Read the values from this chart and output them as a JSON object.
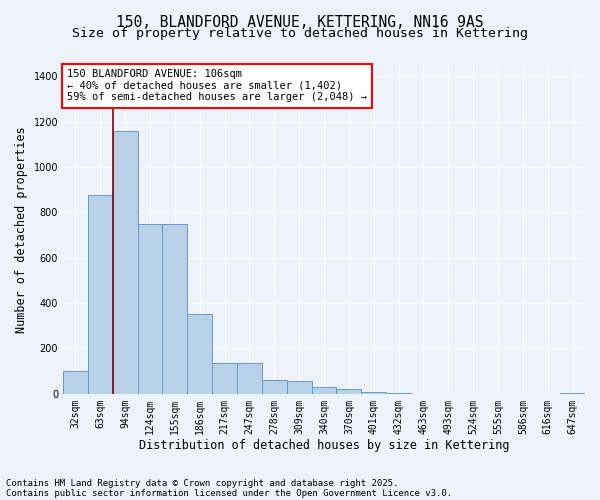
{
  "title_line1": "150, BLANDFORD AVENUE, KETTERING, NN16 9AS",
  "title_line2": "Size of property relative to detached houses in Kettering",
  "xlabel": "Distribution of detached houses by size in Kettering",
  "ylabel": "Number of detached properties",
  "categories": [
    "32sqm",
    "63sqm",
    "94sqm",
    "124sqm",
    "155sqm",
    "186sqm",
    "217sqm",
    "247sqm",
    "278sqm",
    "309sqm",
    "340sqm",
    "370sqm",
    "401sqm",
    "432sqm",
    "463sqm",
    "493sqm",
    "524sqm",
    "555sqm",
    "586sqm",
    "616sqm",
    "647sqm"
  ],
  "values": [
    100,
    875,
    1160,
    750,
    750,
    350,
    135,
    135,
    60,
    55,
    30,
    20,
    10,
    5,
    0,
    0,
    0,
    0,
    0,
    0,
    5
  ],
  "bar_color": "#b8d0e8",
  "bar_edge_color": "#6699cc",
  "background_color": "#eef2fa",
  "grid_color": "#ffffff",
  "annotation_text": "150 BLANDFORD AVENUE: 106sqm\n← 40% of detached houses are smaller (1,402)\n59% of semi-detached houses are larger (2,048) →",
  "vline_position": 1.5,
  "ylim": [
    0,
    1450
  ],
  "yticks": [
    0,
    200,
    400,
    600,
    800,
    1000,
    1200,
    1400
  ],
  "footer_line1": "Contains HM Land Registry data © Crown copyright and database right 2025.",
  "footer_line2": "Contains public sector information licensed under the Open Government Licence v3.0.",
  "title_fontsize": 10.5,
  "subtitle_fontsize": 9.5,
  "ylabel_fontsize": 8.5,
  "xlabel_fontsize": 8.5,
  "tick_fontsize": 7,
  "annotation_fontsize": 7.5,
  "footer_fontsize": 6.5
}
